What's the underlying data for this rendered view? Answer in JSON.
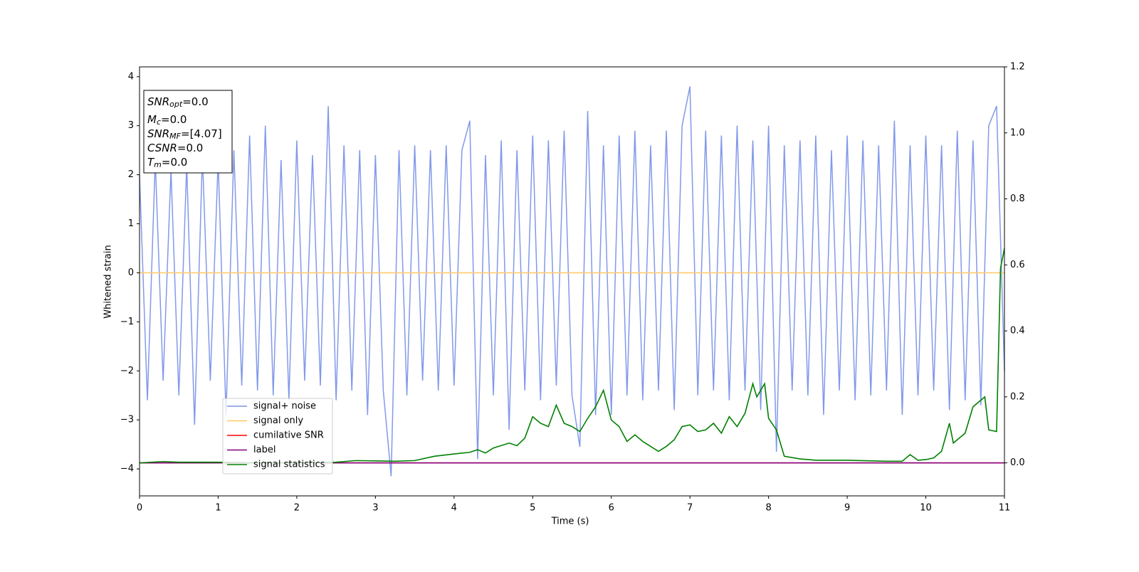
{
  "chart_data": {
    "type": "line",
    "xlabel": "Time (s)",
    "ylabel": "Whitened strain",
    "xlim": [
      0,
      11
    ],
    "ylim": [
      -4.55,
      4.2
    ],
    "y2lim": [
      -0.1,
      1.2
    ],
    "xticks": [
      0,
      1,
      2,
      3,
      4,
      5,
      6,
      7,
      8,
      9,
      10,
      11
    ],
    "yticks": [
      {
        "value": -4,
        "label": "−4"
      },
      {
        "value": -3,
        "label": "−3"
      },
      {
        "value": -2,
        "label": "−2"
      },
      {
        "value": -1,
        "label": "−1"
      },
      0,
      1,
      2,
      3,
      4
    ],
    "y2ticks": [
      {
        "value": 0,
        "label": "0.0"
      },
      {
        "value": 0.2,
        "label": "0.2"
      },
      {
        "value": 0.4,
        "label": "0.4"
      },
      {
        "value": 0.6,
        "label": "0.6"
      },
      {
        "value": 0.8,
        "label": "0.8"
      },
      {
        "value": 1.0,
        "label": "1.0"
      },
      {
        "value": 1.2,
        "label": "1.2"
      }
    ],
    "legend": "lower left",
    "annotations": [
      {
        "base": "SNR",
        "sub": "opt",
        "rest": "=0.0"
      },
      {
        "base": "M",
        "sub": "c",
        "rest": "=0.0"
      },
      {
        "base": "SNR",
        "sub": "MF",
        "rest": "=[4.07]"
      },
      {
        "base": "CSNR",
        "rest": "=0.0"
      },
      {
        "base": "T",
        "sub": "m",
        "rest": "=0.0"
      }
    ],
    "series": [
      {
        "name": "signal+ noise",
        "color": "#7b93e8",
        "axis": "y",
        "x": [
          0,
          0.1,
          0.2,
          0.3,
          0.4,
          0.5,
          0.6,
          0.7,
          0.8,
          0.9,
          1.0,
          1.1,
          1.2,
          1.3,
          1.4,
          1.5,
          1.6,
          1.7,
          1.8,
          1.9,
          2.0,
          2.1,
          2.2,
          2.3,
          2.4,
          2.5,
          2.6,
          2.7,
          2.8,
          2.9,
          3.0,
          3.1,
          3.2,
          3.3,
          3.4,
          3.5,
          3.6,
          3.7,
          3.8,
          3.9,
          4.0,
          4.1,
          4.2,
          4.3,
          4.4,
          4.5,
          4.6,
          4.7,
          4.8,
          4.9,
          5.0,
          5.1,
          5.2,
          5.3,
          5.4,
          5.5,
          5.6,
          5.7,
          5.8,
          5.9,
          6.0,
          6.1,
          6.2,
          6.3,
          6.4,
          6.5,
          6.6,
          6.7,
          6.8,
          6.9,
          7.0,
          7.1,
          7.2,
          7.3,
          7.4,
          7.5,
          7.6,
          7.7,
          7.8,
          7.9,
          8.0,
          8.1,
          8.2,
          8.3,
          8.4,
          8.5,
          8.6,
          8.7,
          8.8,
          8.9,
          9.0,
          9.1,
          9.2,
          9.3,
          9.4,
          9.5,
          9.6,
          9.7,
          9.8,
          9.9,
          10.0,
          10.1,
          10.2,
          10.3,
          10.4,
          10.5,
          10.6,
          10.7,
          10.8,
          10.9,
          11.0
        ],
        "values": [
          2.0,
          -2.6,
          2.3,
          -2.2,
          2.1,
          -2.5,
          2.2,
          -3.1,
          2.4,
          -2.2,
          2.3,
          -2.9,
          2.5,
          -2.3,
          2.8,
          -2.4,
          3.0,
          -2.5,
          2.3,
          -2.6,
          2.7,
          -2.2,
          2.4,
          -2.3,
          3.4,
          -2.6,
          2.6,
          -2.4,
          2.5,
          -2.9,
          2.4,
          -2.4,
          -4.15,
          2.5,
          -2.5,
          2.6,
          -2.2,
          2.5,
          -2.4,
          2.6,
          -2.3,
          2.5,
          3.1,
          -3.8,
          2.4,
          -2.5,
          2.7,
          -3.2,
          2.5,
          -2.4,
          2.8,
          -2.6,
          2.7,
          -2.3,
          2.9,
          -2.5,
          -3.55,
          3.3,
          -2.9,
          2.6,
          -2.9,
          2.8,
          -2.5,
          2.9,
          -2.6,
          2.6,
          -2.4,
          2.9,
          -2.8,
          3.0,
          3.8,
          -2.5,
          2.9,
          -2.4,
          2.8,
          -2.6,
          3.0,
          -2.4,
          2.7,
          -2.8,
          3.0,
          -3.65,
          2.6,
          -2.4,
          2.7,
          -2.5,
          2.8,
          -2.9,
          2.5,
          -2.4,
          2.8,
          -2.6,
          2.7,
          -2.5,
          2.6,
          -2.4,
          3.1,
          -2.9,
          2.6,
          -2.5,
          2.8,
          -2.4,
          2.6,
          -2.8,
          2.9,
          -2.6,
          2.7,
          -2.7,
          3.0,
          3.4,
          -2.0
        ]
      },
      {
        "name": "signal only",
        "color": "#ffc966",
        "axis": "y",
        "x": [
          0,
          11
        ],
        "values": [
          0,
          0
        ]
      },
      {
        "name": "cumilative SNR",
        "color": "#ff0000",
        "axis": "y2",
        "x": [
          0,
          11
        ],
        "values": [
          0,
          0
        ]
      },
      {
        "name": "label",
        "color": "#800080",
        "axis": "y2",
        "x": [
          0,
          11
        ],
        "values": [
          0,
          0
        ]
      },
      {
        "name": "signal statistics",
        "color": "#008000",
        "axis": "y2",
        "x": [
          0,
          0.3,
          0.5,
          1.0,
          1.5,
          2.0,
          2.5,
          2.75,
          3.0,
          3.25,
          3.5,
          3.75,
          4.0,
          4.2,
          4.3,
          4.4,
          4.5,
          4.7,
          4.8,
          4.9,
          5.0,
          5.1,
          5.2,
          5.3,
          5.4,
          5.5,
          5.6,
          5.7,
          5.8,
          5.9,
          6.0,
          6.1,
          6.2,
          6.3,
          6.4,
          6.5,
          6.6,
          6.7,
          6.8,
          6.9,
          7.0,
          7.1,
          7.2,
          7.3,
          7.4,
          7.5,
          7.6,
          7.7,
          7.8,
          7.85,
          7.95,
          8.0,
          8.1,
          8.2,
          8.4,
          8.6,
          9.0,
          9.5,
          9.7,
          9.8,
          9.9,
          10.0,
          10.1,
          10.2,
          10.3,
          10.35,
          10.5,
          10.6,
          10.75,
          10.8,
          10.9,
          10.95,
          11.0
        ],
        "values": [
          0.0,
          0.004,
          0.002,
          0.002,
          0.0,
          0.0,
          0.002,
          0.007,
          0.006,
          0.005,
          0.007,
          0.02,
          0.027,
          0.032,
          0.04,
          0.03,
          0.045,
          0.06,
          0.052,
          0.075,
          0.14,
          0.12,
          0.11,
          0.175,
          0.12,
          0.11,
          0.095,
          0.135,
          0.17,
          0.22,
          0.13,
          0.11,
          0.065,
          0.085,
          0.065,
          0.05,
          0.035,
          0.05,
          0.07,
          0.11,
          0.115,
          0.095,
          0.1,
          0.12,
          0.09,
          0.14,
          0.11,
          0.15,
          0.24,
          0.2,
          0.24,
          0.135,
          0.1,
          0.02,
          0.012,
          0.008,
          0.008,
          0.005,
          0.005,
          0.025,
          0.008,
          0.01,
          0.015,
          0.035,
          0.12,
          0.06,
          0.09,
          0.17,
          0.2,
          0.1,
          0.095,
          0.59,
          0.65
        ]
      }
    ]
  }
}
